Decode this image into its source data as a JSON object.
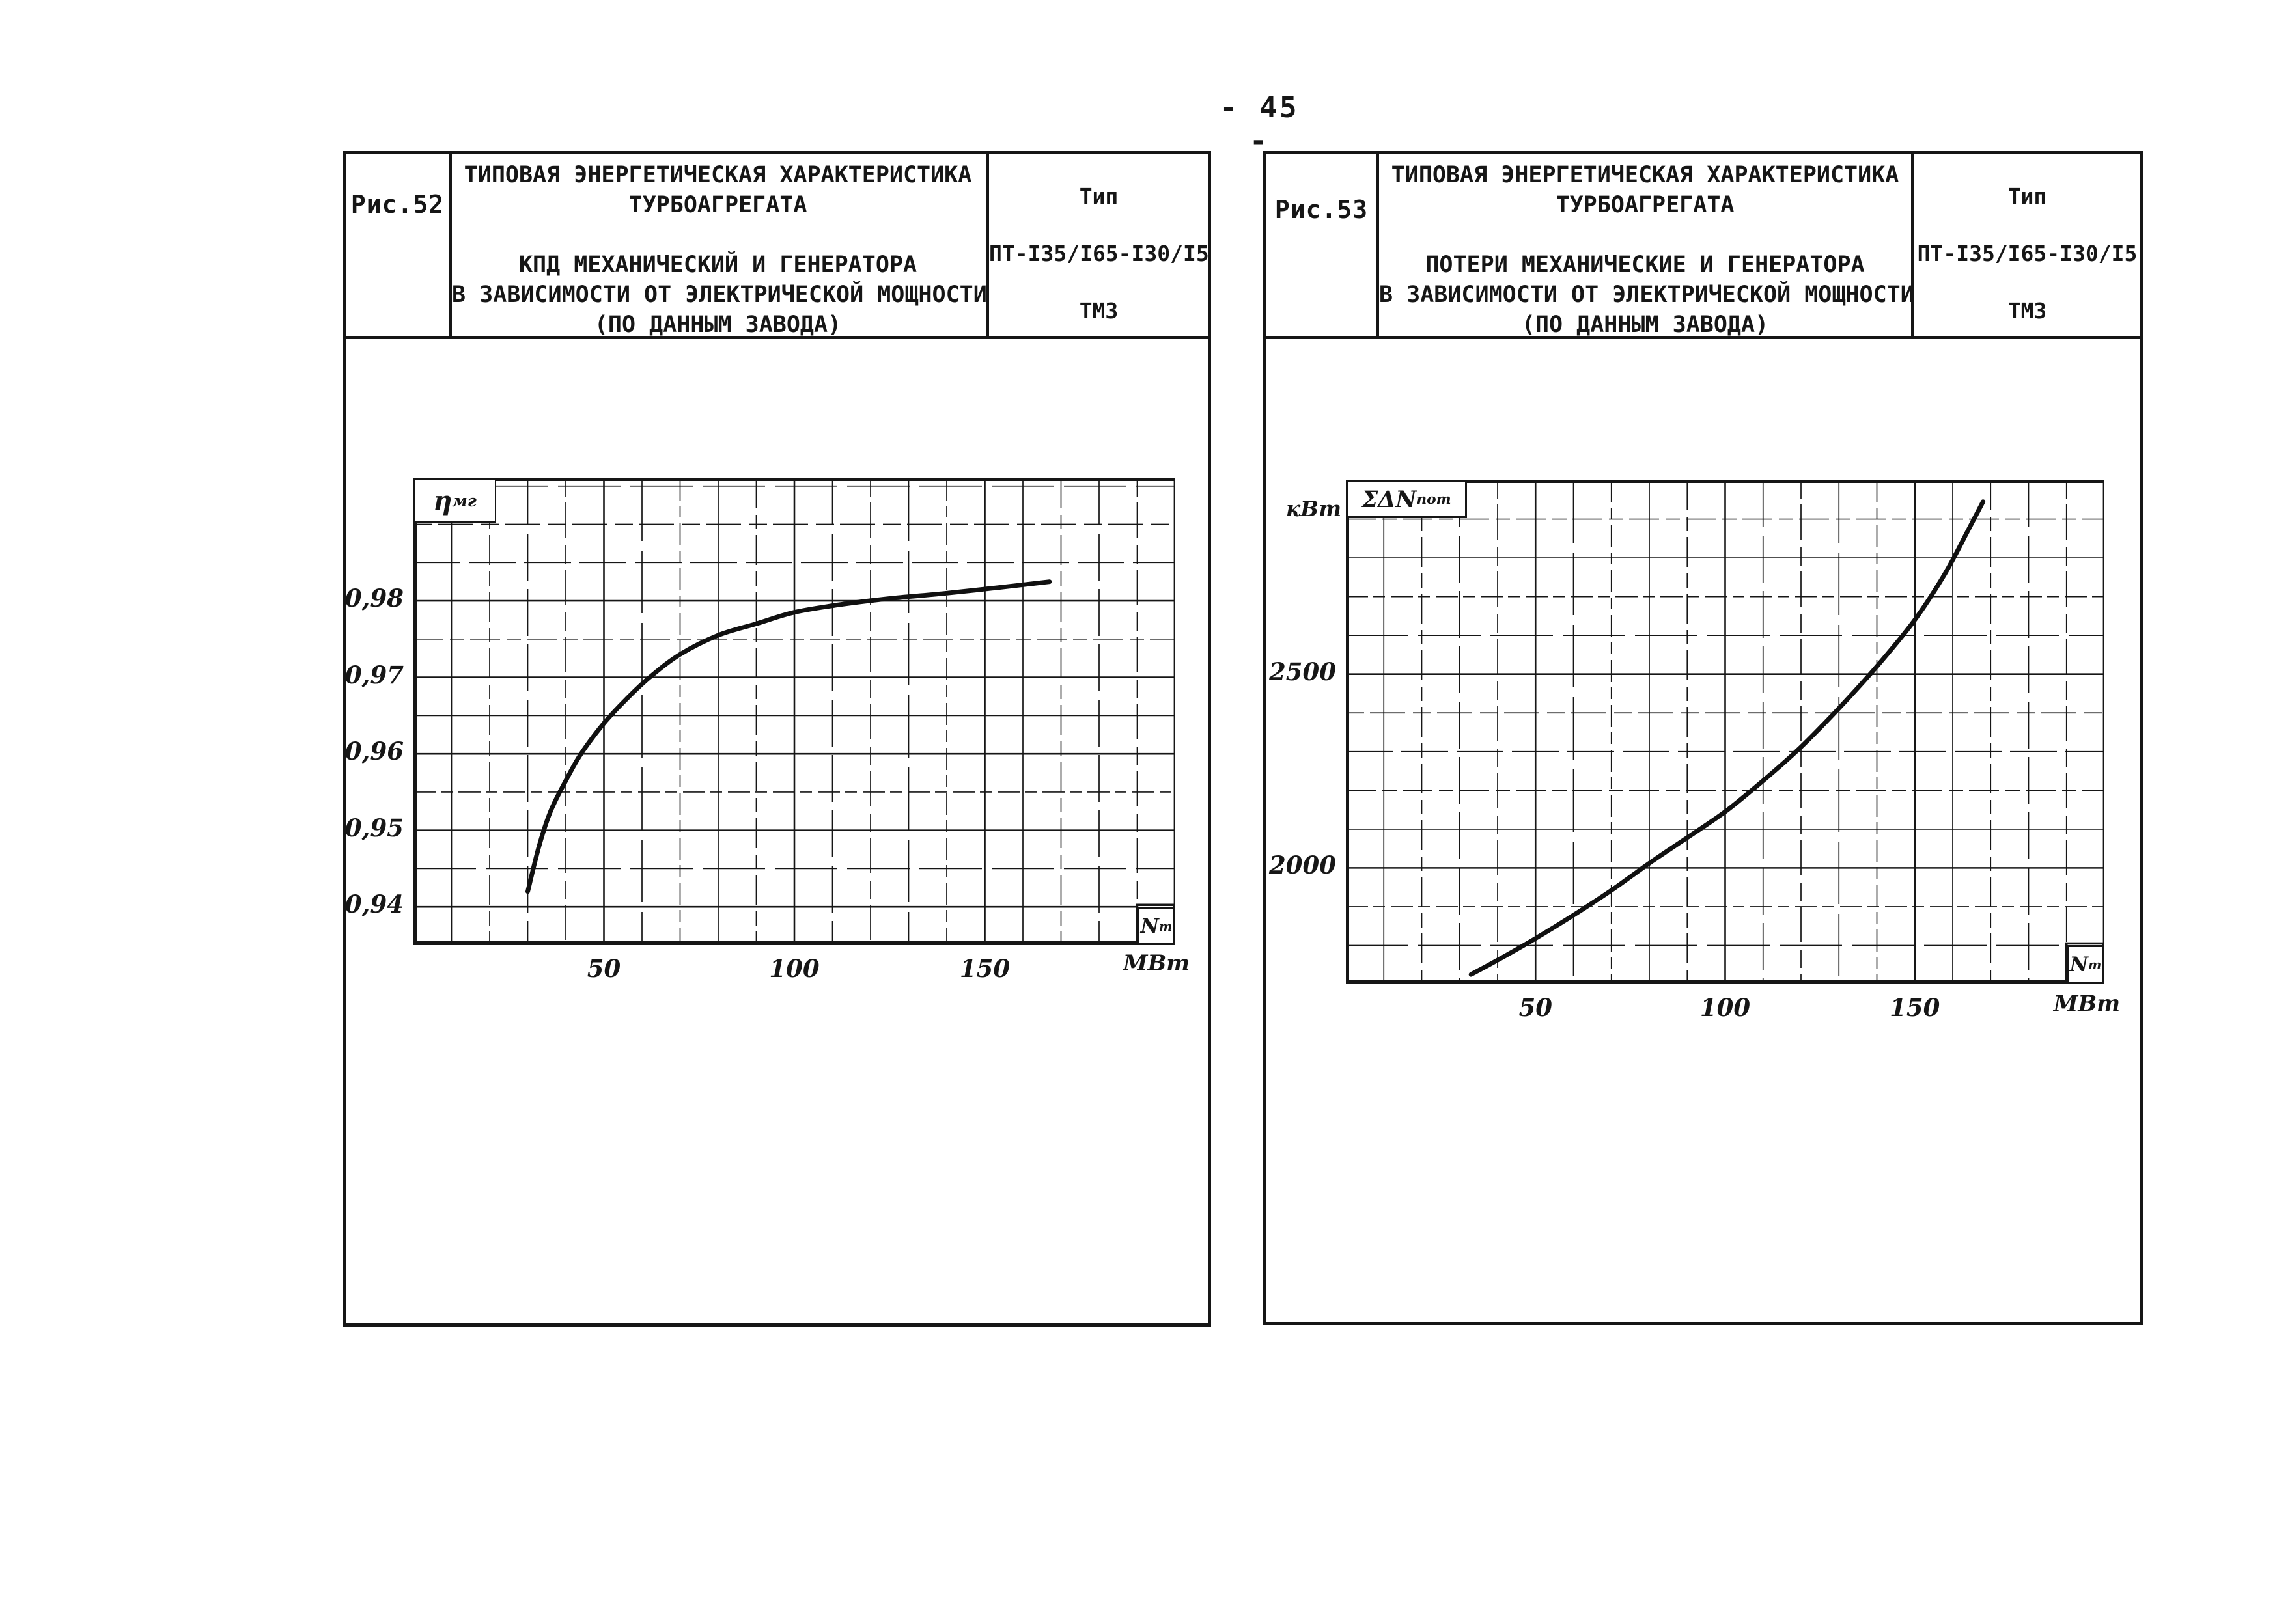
{
  "page": {
    "number": "- 45 -"
  },
  "ink": "#161616",
  "figures": [
    {
      "caption": "Рис.52",
      "title_lines": [
        "ТИПОВАЯ ЭНЕРГЕТИЧЕСКАЯ ХАРАКТЕРИСТИКА",
        "ТУРБОАГРЕГАТА",
        "",
        "КПД МЕХАНИЧЕСКИЙ И ГЕНЕРАТОРА",
        "В ЗАВИСИМОСТИ ОТ ЭЛЕКТРИЧЕСКОЙ МОЩНОСТИ",
        "(ПО ДАННЫМ ЗАВОДА)"
      ],
      "type_lines": [
        "Тип",
        "ПТ-I35/I65-I30/I5",
        "ТМЗ"
      ],
      "y_axis_symbol": "η",
      "y_axis_symbol_sub": "мг",
      "corner_symbol": "N",
      "corner_symbol_sub": "т",
      "x_axis_unit": "МВт"
    },
    {
      "caption": "Рис.53",
      "title_lines": [
        "ТИПОВАЯ ЭНЕРГЕТИЧЕСКАЯ ХАРАКТЕРИСТИКА",
        "ТУРБОАГРЕГАТА",
        "",
        "ПОТЕРИ МЕХАНИЧЕСКИЕ И ГЕНЕРАТОРА",
        "В ЗАВИСИМОСТИ ОТ ЭЛЕКТРИЧЕСКОЙ МОЩНОСТИ",
        "(ПО ДАННЫМ ЗАВОДА)"
      ],
      "type_lines": [
        "Тип",
        "ПТ-I35/I65-I30/I5",
        "ТМЗ"
      ],
      "y_axis_symbol": "ΣΔN",
      "y_axis_symbol_sub": "пот",
      "y_axis_unit": "кВт",
      "corner_symbol": "N",
      "corner_symbol_sub": "т",
      "x_axis_unit": "МВт"
    }
  ],
  "chart_data": [
    {
      "type": "line",
      "figure": "Рис.52",
      "title": "ТИПОВАЯ ЭНЕРГЕТИЧЕСКАЯ ХАРАКТЕРИСТИКА ТУРБОАГРЕГАТА. КПД МЕХАНИЧЕСКИЙ И ГЕНЕРАТОРА В ЗАВИСИМОСТИ ОТ ЭЛЕКТРИЧЕСКОЙ МОЩНОСТИ (ПО ДАННЫМ ЗАВОДА)",
      "xlabel": "Nт, МВт",
      "ylabel": "ηмг",
      "xlim": [
        0,
        200
      ],
      "ylim": [
        0.935,
        0.996
      ],
      "x_grid_step": 10,
      "y_grid_step": 0.005,
      "grid": true,
      "legend_position": "none",
      "x_ticks": [
        {
          "v": 50,
          "label": "50"
        },
        {
          "v": 100,
          "label": "100"
        },
        {
          "v": 150,
          "label": "150"
        }
      ],
      "y_ticks": [
        {
          "v": 0.98,
          "label": "0,98"
        },
        {
          "v": 0.97,
          "label": "0,97"
        },
        {
          "v": 0.96,
          "label": "0,96"
        },
        {
          "v": 0.95,
          "label": "0,95"
        },
        {
          "v": 0.94,
          "label": "0,94"
        }
      ],
      "series": [
        {
          "name": "ηмг",
          "points": [
            [
              30,
              0.942
            ],
            [
              33,
              0.948
            ],
            [
              36,
              0.9525
            ],
            [
              40,
              0.9565
            ],
            [
              44,
              0.96
            ],
            [
              50,
              0.964
            ],
            [
              56,
              0.9672
            ],
            [
              62,
              0.97
            ],
            [
              70,
              0.973
            ],
            [
              80,
              0.9755
            ],
            [
              90,
              0.977
            ],
            [
              100,
              0.9785
            ],
            [
              112,
              0.9795
            ],
            [
              125,
              0.9803
            ],
            [
              140,
              0.981
            ],
            [
              153,
              0.9817
            ],
            [
              167,
              0.9825
            ]
          ]
        }
      ]
    },
    {
      "type": "line",
      "figure": "Рис.53",
      "title": "ТИПОВАЯ ЭНЕРГЕТИЧЕСКАЯ ХАРАКТЕРИСТИКА ТУРБОАГРЕГАТА. ПОТЕРИ МЕХАНИЧЕСКИЕ И ГЕНЕРАТОРА В ЗАВИСИМОСТИ ОТ ЭЛЕКТРИЧЕСКОЙ МОЩНОСТИ (ПО ДАННЫМ ЗАВОДА)",
      "xlabel": "Nт, МВт",
      "ylabel": "ΣΔNпот, кВт",
      "xlim": [
        0,
        200
      ],
      "ylim": [
        1700,
        3000
      ],
      "x_grid_step": 10,
      "y_grid_step": 100,
      "grid": true,
      "legend_position": "none",
      "x_ticks": [
        {
          "v": 50,
          "label": "50"
        },
        {
          "v": 100,
          "label": "100"
        },
        {
          "v": 150,
          "label": "150"
        }
      ],
      "y_ticks": [
        {
          "v": 2500,
          "label": "2500"
        },
        {
          "v": 2000,
          "label": "2000"
        }
      ],
      "series": [
        {
          "name": "ΣΔNпот",
          "points": [
            [
              33,
              1725
            ],
            [
              40,
              1762
            ],
            [
              50,
              1818
            ],
            [
              60,
              1878
            ],
            [
              70,
              1942
            ],
            [
              80,
              2012
            ],
            [
              90,
              2078
            ],
            [
              100,
              2145
            ],
            [
              110,
              2225
            ],
            [
              120,
              2312
            ],
            [
              130,
              2412
            ],
            [
              140,
              2520
            ],
            [
              150,
              2640
            ],
            [
              158,
              2760
            ],
            [
              164,
              2870
            ],
            [
              168,
              2945
            ]
          ]
        }
      ]
    }
  ]
}
